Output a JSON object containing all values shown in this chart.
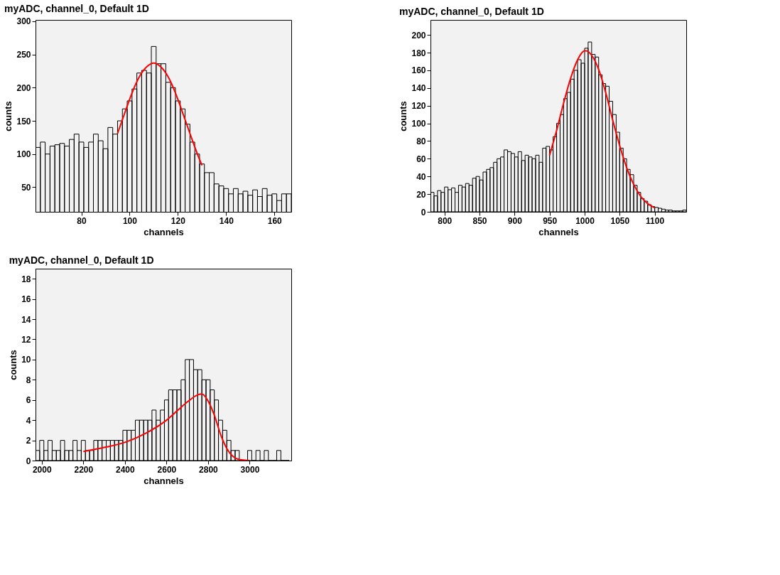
{
  "chart_data": [
    {
      "type": "histogram",
      "title": "myADC, channel_0, Default 1D",
      "xlabel": "channels",
      "ylabel": "counts",
      "color": "#000000",
      "grid": false,
      "legend": false,
      "bins": [
        61,
        63,
        65,
        67,
        69,
        71,
        73,
        75,
        77,
        79,
        81,
        83,
        85,
        87,
        89,
        91,
        93,
        95,
        97,
        99,
        101,
        103,
        105,
        107,
        109,
        111,
        113,
        115,
        117,
        119,
        121,
        123,
        125,
        127,
        129,
        131,
        133,
        135,
        137,
        139,
        141,
        143,
        145,
        147,
        149,
        151,
        153,
        155,
        157,
        159,
        161,
        163,
        165,
        167
      ],
      "values": [
        110,
        118,
        100,
        112,
        114,
        116,
        112,
        122,
        130,
        118,
        110,
        118,
        130,
        120,
        108,
        140,
        130,
        150,
        168,
        180,
        198,
        222,
        226,
        222,
        262,
        236,
        236,
        208,
        200,
        180,
        168,
        145,
        118,
        100,
        85,
        72,
        72,
        55,
        52,
        48,
        40,
        48,
        40,
        44,
        38,
        46,
        36,
        48,
        38,
        40,
        30,
        40,
        40
      ],
      "series": [
        {
          "type": "line",
          "color": "#ff0000",
          "x": [
            95,
            98,
            101,
            104,
            107,
            110,
            113,
            116,
            119,
            122,
            125,
            128,
            130
          ],
          "values": [
            131,
            162,
            192,
            216,
            231,
            237,
            231,
            216,
            192,
            162,
            131,
            101,
            83
          ]
        }
      ],
      "xlim": [
        61,
        167
      ],
      "ylim": [
        13,
        302
      ],
      "xticks": [
        80,
        100,
        120,
        140,
        160
      ],
      "yticks": [
        50,
        100,
        150,
        200,
        250,
        300
      ]
    },
    {
      "type": "histogram",
      "title": "myADC, channel_0, Default 1D",
      "xlabel": "channels",
      "ylabel": "counts",
      "color": "#000000",
      "grid": false,
      "legend": false,
      "bins": [
        780,
        785,
        790,
        795,
        800,
        805,
        810,
        815,
        820,
        825,
        830,
        835,
        840,
        845,
        850,
        855,
        860,
        865,
        870,
        875,
        880,
        885,
        890,
        895,
        900,
        905,
        910,
        915,
        920,
        925,
        930,
        935,
        940,
        945,
        950,
        955,
        960,
        965,
        970,
        975,
        980,
        985,
        990,
        995,
        1000,
        1005,
        1010,
        1015,
        1020,
        1025,
        1030,
        1035,
        1040,
        1045,
        1050,
        1055,
        1060,
        1065,
        1070,
        1075,
        1080,
        1085,
        1090,
        1095,
        1100,
        1105,
        1110,
        1115,
        1120,
        1125,
        1130,
        1135,
        1140,
        1145
      ],
      "values": [
        22,
        18,
        24,
        22,
        28,
        25,
        27,
        22,
        30,
        28,
        32,
        30,
        38,
        40,
        36,
        45,
        48,
        50,
        56,
        60,
        62,
        70,
        68,
        66,
        62,
        68,
        58,
        64,
        62,
        60,
        64,
        56,
        72,
        74,
        70,
        85,
        100,
        110,
        128,
        135,
        150,
        160,
        172,
        168,
        185,
        192,
        178,
        175,
        155,
        145,
        142,
        125,
        110,
        90,
        72,
        60,
        48,
        42,
        30,
        22,
        15,
        12,
        8,
        6,
        5,
        4,
        3,
        2,
        2,
        1,
        1,
        1,
        2
      ],
      "series": [
        {
          "type": "line",
          "color": "#ff0000",
          "x": [
            950,
            960,
            970,
            980,
            990,
            1000,
            1002,
            1010,
            1020,
            1030,
            1040,
            1050,
            1060,
            1070,
            1080,
            1090,
            1100
          ],
          "values": [
            64,
            92,
            123,
            151,
            172,
            182,
            182,
            177,
            161,
            135,
            104,
            75,
            50,
            31,
            17.5,
            9.2,
            4.5
          ]
        }
      ],
      "xlim": [
        780,
        1145
      ],
      "ylim": [
        0,
        217
      ],
      "xticks": [
        800,
        850,
        900,
        950,
        1000,
        1050,
        1100
      ],
      "yticks": [
        0,
        20,
        40,
        60,
        80,
        100,
        120,
        140,
        160,
        180,
        200
      ]
    },
    {
      "type": "histogram",
      "title": "myADC, channel_0, Default 1D",
      "xlabel": "channels",
      "ylabel": "counts",
      "color": "#000000",
      "grid": false,
      "legend": false,
      "bins": [
        1970,
        1990,
        2010,
        2030,
        2050,
        2070,
        2090,
        2110,
        2130,
        2150,
        2170,
        2190,
        2210,
        2230,
        2250,
        2270,
        2290,
        2310,
        2330,
        2350,
        2370,
        2390,
        2410,
        2430,
        2450,
        2470,
        2490,
        2510,
        2530,
        2550,
        2570,
        2590,
        2610,
        2630,
        2650,
        2670,
        2690,
        2710,
        2730,
        2750,
        2770,
        2790,
        2810,
        2830,
        2850,
        2870,
        2890,
        2910,
        2930,
        2950,
        2970,
        2990,
        3010,
        3030,
        3050,
        3070,
        3090,
        3110,
        3130,
        3150,
        3170,
        3190
      ],
      "values": [
        1,
        2,
        1,
        2,
        1,
        1,
        2,
        1,
        1,
        2,
        1,
        2,
        1,
        1,
        2,
        2,
        2,
        2,
        2,
        2,
        2,
        3,
        3,
        3,
        4,
        4,
        4,
        4,
        5,
        4,
        5,
        6,
        7,
        7,
        7,
        8,
        10,
        10,
        9,
        9,
        8,
        8,
        7,
        6,
        4,
        3,
        2,
        1,
        1,
        0,
        0,
        1,
        0,
        1,
        0,
        1,
        0,
        0,
        1,
        0,
        0
      ],
      "series": [
        {
          "type": "line",
          "color": "#ff0000",
          "x": [
            2200,
            2300,
            2400,
            2500,
            2600,
            2650,
            2700,
            2750,
            2770,
            2800,
            2830,
            2860,
            2890,
            2920,
            2950,
            3000
          ],
          "values": [
            0.9,
            1.3,
            1.8,
            2.7,
            4.0,
            4.9,
            5.8,
            6.5,
            6.6,
            5.9,
            4.5,
            2.6,
            1.2,
            0.4,
            0.1,
            0
          ]
        }
      ],
      "xlim": [
        1970,
        3200
      ],
      "ylim": [
        0,
        19
      ],
      "xticks": [
        2000,
        2200,
        2400,
        2600,
        2800,
        3000
      ],
      "yticks": [
        0,
        2,
        4,
        6,
        8,
        10,
        12,
        14,
        16,
        18
      ]
    }
  ]
}
